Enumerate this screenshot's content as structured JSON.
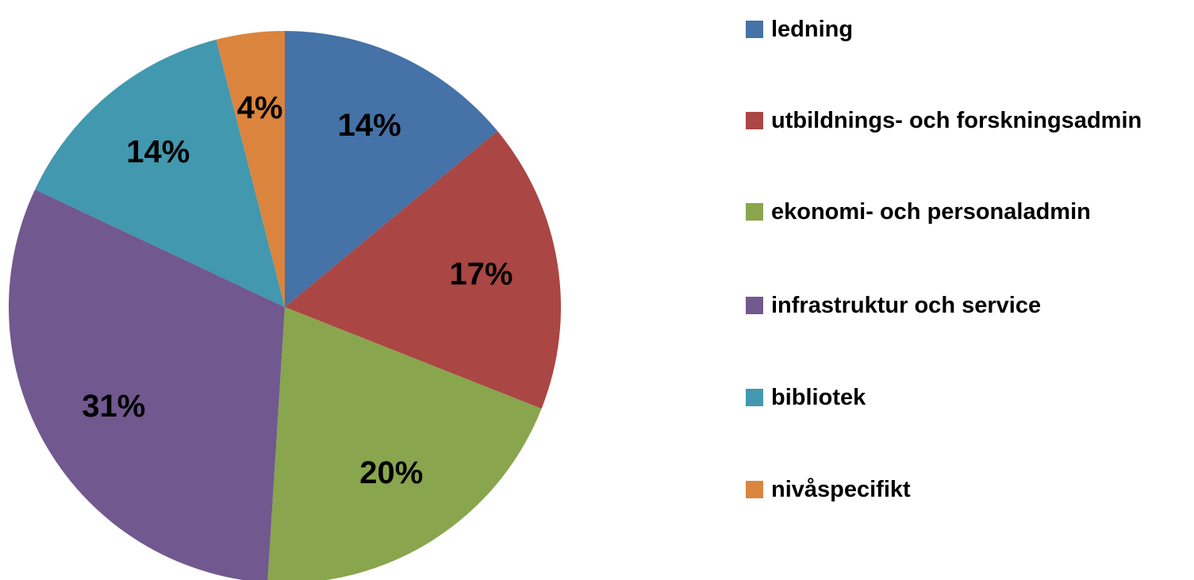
{
  "chart_data": {
    "type": "pie",
    "categories": [
      "ledning",
      "utbildnings- och forskningsadmin",
      "ekonomi- och personaladmin",
      "infrastruktur och service",
      "bibliotek",
      "nivåspecifikt"
    ],
    "values": [
      14,
      17,
      20,
      31,
      14,
      4
    ],
    "value_labels": [
      "14%",
      "17%",
      "20%",
      "31%",
      "14%",
      "4%"
    ],
    "colors": [
      "#4572a7",
      "#aa4643",
      "#89a54e",
      "#71588f",
      "#4198af",
      "#db843d"
    ],
    "legend": "right"
  }
}
